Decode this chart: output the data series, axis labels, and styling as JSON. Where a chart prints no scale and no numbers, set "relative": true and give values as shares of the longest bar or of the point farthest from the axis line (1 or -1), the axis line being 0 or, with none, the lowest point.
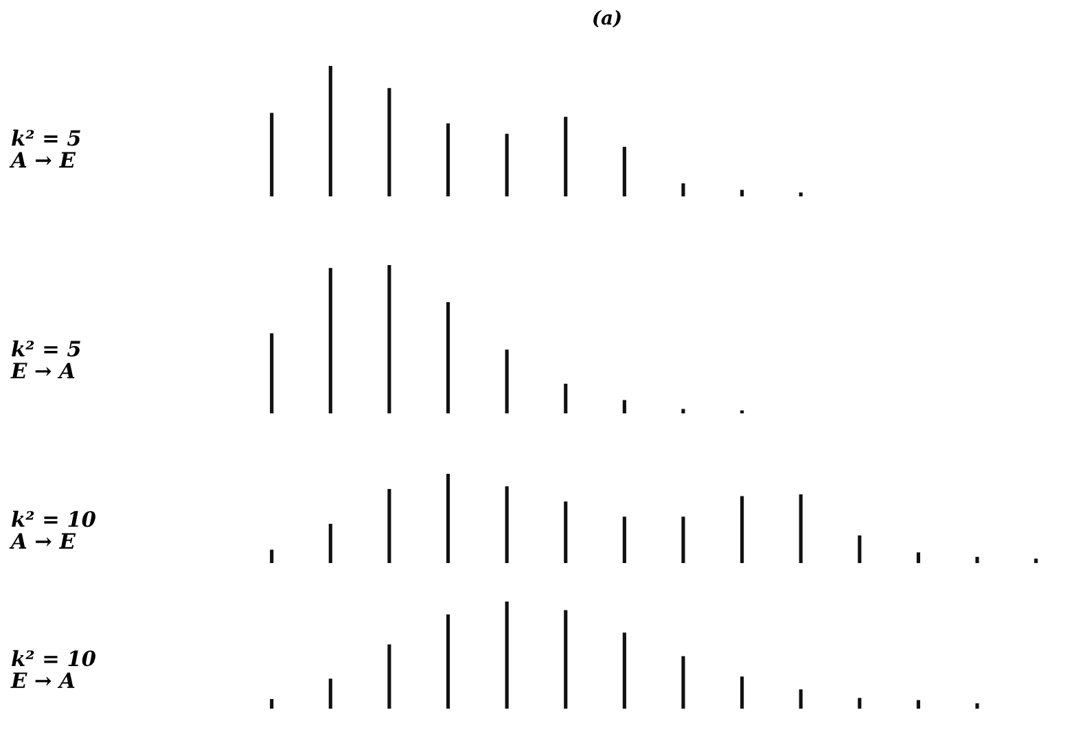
{
  "chart_data": [
    {
      "type": "bar",
      "title": "(a)",
      "ylabel": "k² = 5\nA → E",
      "relative": true,
      "color": "#111111",
      "categories": [
        null,
        null,
        null,
        null,
        null,
        null,
        null,
        null,
        null,
        null
      ],
      "values": [
        0.64,
        1,
        0.83,
        0.56,
        0.48,
        0.61,
        0.38,
        0.1,
        0.05,
        0.03
      ]
    },
    {
      "type": "bar",
      "ylabel": "k² = 5\nE → A",
      "relative": true,
      "color": "#111111",
      "categories": [
        null,
        null,
        null,
        null,
        null,
        null,
        null,
        null,
        null
      ],
      "values": [
        0.54,
        0.98,
        1,
        0.75,
        0.43,
        0.2,
        0.09,
        0.03,
        0.02
      ]
    },
    {
      "type": "bar",
      "ylabel": "k² = 10\nA → E",
      "relative": true,
      "color": "#111111",
      "categories": [
        null,
        null,
        null,
        null,
        null,
        null,
        null,
        null,
        null,
        null,
        null,
        null,
        null,
        null
      ],
      "values": [
        0.15,
        0.44,
        0.83,
        1,
        0.86,
        0.69,
        0.52,
        0.52,
        0.75,
        0.77,
        0.31,
        0.12,
        0.07,
        0.05
      ]
    },
    {
      "type": "bar",
      "ylabel": "k² = 10\nE → A",
      "relative": true,
      "color": "#111111",
      "categories": [
        null,
        null,
        null,
        null,
        null,
        null,
        null,
        null,
        null,
        null,
        null,
        null,
        null
      ],
      "values": [
        0.09,
        0.28,
        0.6,
        0.88,
        1,
        0.92,
        0.71,
        0.49,
        0.3,
        0.18,
        0.1,
        0.08,
        0.05
      ]
    }
  ]
}
